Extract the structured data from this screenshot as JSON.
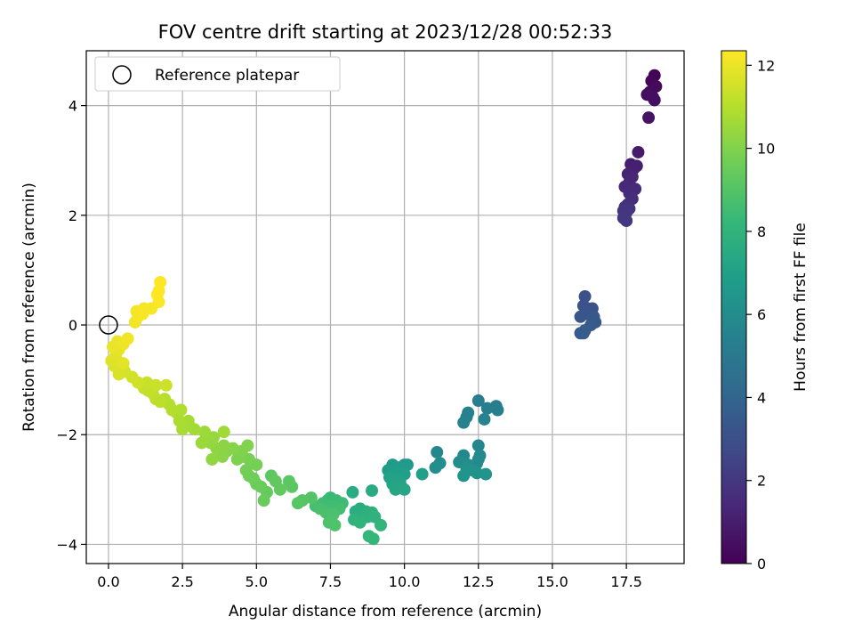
{
  "chart_data": {
    "type": "scatter",
    "title": "FOV centre drift starting at 2023/12/28 00:52:33",
    "xlabel": "Angular distance from reference (arcmin)",
    "ylabel": "Rotation from reference (arcmin)",
    "xlim": [
      -0.75,
      19.45
    ],
    "ylim": [
      -4.35,
      5.0
    ],
    "xticks": [
      0.0,
      2.5,
      5.0,
      7.5,
      10.0,
      12.5,
      15.0,
      17.5
    ],
    "xtick_labels": [
      "0.0",
      "2.5",
      "5.0",
      "7.5",
      "10.0",
      "12.5",
      "15.0",
      "17.5"
    ],
    "yticks": [
      -4,
      -2,
      0,
      2,
      4
    ],
    "ytick_labels": [
      "−4",
      "−2",
      "0",
      "2",
      "4"
    ],
    "grid": true,
    "legend": {
      "placement": "top-left",
      "entries": [
        "Reference platepar"
      ]
    },
    "reference_point": {
      "x": 0.0,
      "y": 0.0
    },
    "colorbar": {
      "label": "Hours from first FF file",
      "colormap": "viridis",
      "range": [
        0,
        12.35
      ],
      "ticks": [
        0,
        2,
        4,
        6,
        8,
        10,
        12
      ],
      "tick_labels": [
        "0",
        "2",
        "4",
        "6",
        "8",
        "10",
        "12"
      ]
    },
    "points": [
      [
        18.45,
        4.55,
        0.1
      ],
      [
        18.35,
        4.45,
        0.2
      ],
      [
        18.5,
        4.35,
        0.3
      ],
      [
        18.3,
        4.25,
        0.35
      ],
      [
        18.4,
        4.15,
        0.4
      ],
      [
        18.2,
        4.2,
        0.45
      ],
      [
        18.45,
        4.1,
        0.5
      ],
      [
        18.25,
        3.78,
        0.6
      ],
      [
        17.9,
        3.15,
        0.9
      ],
      [
        17.65,
        2.93,
        1.0
      ],
      [
        17.85,
        2.9,
        1.05
      ],
      [
        17.75,
        2.85,
        1.1
      ],
      [
        17.55,
        2.75,
        1.2
      ],
      [
        17.7,
        2.7,
        1.25
      ],
      [
        17.6,
        2.6,
        1.3
      ],
      [
        17.45,
        2.52,
        1.4
      ],
      [
        17.8,
        2.48,
        1.45
      ],
      [
        17.6,
        2.4,
        1.5
      ],
      [
        17.7,
        2.3,
        1.6
      ],
      [
        17.55,
        2.2,
        1.7
      ],
      [
        17.45,
        2.15,
        1.75
      ],
      [
        17.6,
        2.12,
        1.8
      ],
      [
        17.4,
        2.08,
        1.85
      ],
      [
        17.5,
        2.05,
        1.9
      ],
      [
        17.4,
        1.95,
        1.95
      ],
      [
        17.5,
        1.9,
        2.0
      ],
      [
        16.1,
        0.52,
        3.0
      ],
      [
        16.05,
        0.35,
        3.1
      ],
      [
        16.2,
        0.3,
        3.15
      ],
      [
        16.35,
        0.3,
        3.2
      ],
      [
        16.15,
        0.2,
        3.25
      ],
      [
        15.95,
        0.15,
        3.3
      ],
      [
        16.4,
        0.15,
        3.35
      ],
      [
        16.45,
        0.05,
        3.4
      ],
      [
        16.3,
        0.0,
        3.45
      ],
      [
        16.1,
        -0.1,
        3.5
      ],
      [
        15.95,
        -0.15,
        3.55
      ],
      [
        16.05,
        -0.15,
        3.6
      ],
      [
        12.5,
        -1.38,
        5.2
      ],
      [
        13.1,
        -1.48,
        5.25
      ],
      [
        12.8,
        -1.52,
        5.3
      ],
      [
        13.15,
        -1.55,
        5.35
      ],
      [
        12.15,
        -1.6,
        5.4
      ],
      [
        12.1,
        -1.68,
        5.45
      ],
      [
        12.7,
        -1.72,
        5.5
      ],
      [
        12.0,
        -1.78,
        5.55
      ],
      [
        12.5,
        -2.2,
        5.7
      ],
      [
        11.1,
        -2.32,
        5.75
      ],
      [
        12.0,
        -2.38,
        5.8
      ],
      [
        12.55,
        -2.38,
        5.85
      ],
      [
        12.5,
        -2.45,
        5.9
      ],
      [
        12.45,
        -2.52,
        5.95
      ],
      [
        11.2,
        -2.52,
        6.0
      ],
      [
        11.85,
        -2.5,
        6.05
      ],
      [
        12.15,
        -2.55,
        6.1
      ],
      [
        11.05,
        -2.6,
        6.15
      ],
      [
        12.1,
        -2.62,
        6.2
      ],
      [
        12.3,
        -2.65,
        6.25
      ],
      [
        12.45,
        -2.7,
        6.3
      ],
      [
        12.75,
        -2.72,
        6.35
      ],
      [
        12.0,
        -2.75,
        6.4
      ],
      [
        10.0,
        -2.55,
        6.6
      ],
      [
        10.1,
        -2.55,
        6.65
      ],
      [
        9.6,
        -2.55,
        6.7
      ],
      [
        9.8,
        -2.6,
        6.75
      ],
      [
        9.45,
        -2.65,
        6.8
      ],
      [
        9.75,
        -2.68,
        6.85
      ],
      [
        10.6,
        -2.72,
        6.9
      ],
      [
        10.0,
        -2.72,
        6.95
      ],
      [
        9.5,
        -2.78,
        7.0
      ],
      [
        9.7,
        -2.8,
        7.05
      ],
      [
        9.85,
        -2.85,
        7.1
      ],
      [
        9.6,
        -2.9,
        7.15
      ],
      [
        9.9,
        -2.95,
        7.2
      ],
      [
        9.7,
        -3.0,
        7.25
      ],
      [
        10.0,
        -3.0,
        7.3
      ],
      [
        8.9,
        -3.02,
        7.5
      ],
      [
        8.25,
        -3.05,
        7.55
      ],
      [
        8.5,
        -3.35,
        7.6
      ],
      [
        8.7,
        -3.4,
        7.65
      ],
      [
        8.35,
        -3.4,
        7.7
      ],
      [
        8.6,
        -3.45,
        7.75
      ],
      [
        8.9,
        -3.42,
        7.8
      ],
      [
        8.75,
        -3.5,
        7.85
      ],
      [
        9.0,
        -3.5,
        7.9
      ],
      [
        8.3,
        -3.55,
        7.95
      ],
      [
        8.5,
        -3.6,
        8.0
      ],
      [
        9.2,
        -3.65,
        8.05
      ],
      [
        8.8,
        -3.85,
        8.1
      ],
      [
        8.95,
        -3.9,
        8.15
      ],
      [
        7.5,
        -3.15,
        8.3
      ],
      [
        7.4,
        -3.2,
        8.35
      ],
      [
        7.7,
        -3.2,
        8.4
      ],
      [
        7.9,
        -3.25,
        8.45
      ],
      [
        7.25,
        -3.25,
        8.5
      ],
      [
        7.55,
        -3.3,
        8.55
      ],
      [
        7.8,
        -3.35,
        8.6
      ],
      [
        7.0,
        -3.3,
        8.65
      ],
      [
        7.15,
        -3.35,
        8.7
      ],
      [
        7.35,
        -3.42,
        8.75
      ],
      [
        7.6,
        -3.45,
        8.8
      ],
      [
        7.45,
        -3.6,
        8.85
      ],
      [
        7.65,
        -3.65,
        8.9
      ],
      [
        6.85,
        -3.15,
        9.0
      ],
      [
        6.55,
        -3.2,
        9.05
      ],
      [
        6.4,
        -3.25,
        9.1
      ],
      [
        6.1,
        -2.85,
        9.15
      ],
      [
        6.2,
        -2.95,
        9.2
      ],
      [
        5.5,
        -2.75,
        9.25
      ],
      [
        5.65,
        -2.85,
        9.3
      ],
      [
        5.8,
        -3.0,
        9.35
      ],
      [
        5.35,
        -3.05,
        9.4
      ],
      [
        5.15,
        -2.95,
        9.45
      ],
      [
        5.25,
        -3.2,
        9.5
      ],
      [
        5.0,
        -2.9,
        9.55
      ],
      [
        4.9,
        -2.8,
        9.6
      ],
      [
        4.75,
        -2.75,
        9.65
      ],
      [
        4.65,
        -2.65,
        9.7
      ],
      [
        5.0,
        -2.55,
        9.75
      ],
      [
        4.75,
        -2.45,
        9.8
      ],
      [
        4.55,
        -2.4,
        9.85
      ],
      [
        4.35,
        -2.45,
        9.9
      ],
      [
        4.5,
        -2.3,
        9.95
      ],
      [
        4.7,
        -2.2,
        10.0
      ],
      [
        4.2,
        -2.25,
        10.05
      ],
      [
        4.0,
        -2.3,
        10.1
      ],
      [
        3.85,
        -2.4,
        10.15
      ],
      [
        3.9,
        -2.2,
        10.2
      ],
      [
        3.65,
        -2.25,
        10.25
      ],
      [
        3.5,
        -2.45,
        10.3
      ],
      [
        3.45,
        -2.15,
        10.35
      ],
      [
        3.55,
        -2.05,
        10.4
      ],
      [
        3.3,
        -2.05,
        10.45
      ],
      [
        3.15,
        -2.15,
        10.5
      ],
      [
        3.25,
        -1.95,
        10.55
      ],
      [
        3.9,
        -1.95,
        10.6
      ],
      [
        2.9,
        -1.9,
        10.65
      ],
      [
        2.7,
        -1.75,
        10.7
      ],
      [
        2.5,
        -1.9,
        10.75
      ],
      [
        2.4,
        -1.75,
        10.8
      ],
      [
        2.3,
        -1.6,
        10.85
      ],
      [
        2.45,
        -1.55,
        10.9
      ],
      [
        2.15,
        -1.55,
        10.95
      ],
      [
        2.05,
        -1.45,
        11.0
      ],
      [
        1.9,
        -1.35,
        11.05
      ],
      [
        1.75,
        -1.4,
        11.1
      ],
      [
        1.6,
        -1.35,
        11.15
      ],
      [
        1.5,
        -1.25,
        11.2
      ],
      [
        1.35,
        -1.2,
        11.25
      ],
      [
        1.2,
        -1.15,
        11.3
      ],
      [
        1.3,
        -1.05,
        11.35
      ],
      [
        1.6,
        -1.1,
        11.4
      ],
      [
        1.95,
        -1.1,
        11.45
      ],
      [
        1.0,
        -1.05,
        11.5
      ],
      [
        0.8,
        -0.95,
        11.55
      ],
      [
        0.55,
        -0.85,
        11.6
      ],
      [
        0.35,
        -0.9,
        11.65
      ],
      [
        0.2,
        -0.75,
        11.7
      ],
      [
        0.1,
        -0.65,
        11.75
      ],
      [
        0.25,
        -0.55,
        11.8
      ],
      [
        0.5,
        -0.7,
        11.85
      ],
      [
        0.35,
        -0.45,
        11.9
      ],
      [
        0.15,
        -0.4,
        11.95
      ],
      [
        0.3,
        -0.3,
        12.0
      ],
      [
        0.5,
        -0.35,
        12.05
      ],
      [
        0.65,
        -0.25,
        12.1
      ],
      [
        0.9,
        0.05,
        12.1
      ],
      [
        1.0,
        0.15,
        12.15
      ],
      [
        0.95,
        0.25,
        12.15
      ],
      [
        1.2,
        0.3,
        12.2
      ],
      [
        1.45,
        0.3,
        12.2
      ],
      [
        1.15,
        0.2,
        12.25
      ],
      [
        1.7,
        0.42,
        12.3
      ],
      [
        1.65,
        0.55,
        12.3
      ],
      [
        1.7,
        0.62,
        12.35
      ],
      [
        1.75,
        0.78,
        12.35
      ]
    ]
  }
}
